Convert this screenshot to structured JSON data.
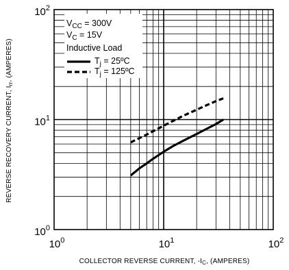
{
  "chart_data": {
    "type": "line",
    "xlabel": {
      "main": "COLLECTOR REVERSE CURRENT, -I",
      "sub": "C",
      "tail": ", (AMPERES)"
    },
    "ylabel": {
      "main": "REVERSE RECOVERY CURRENT, I",
      "sub": "rr",
      "tail": ", (AMPERES)"
    },
    "x_scale": "log",
    "y_scale": "log",
    "xlim": [
      1,
      100
    ],
    "ylim": [
      1,
      100
    ],
    "grid": true,
    "x_ticks": [
      {
        "value": 1,
        "base": "10",
        "exp": "0"
      },
      {
        "value": 10,
        "base": "10",
        "exp": "1"
      },
      {
        "value": 100,
        "base": "10",
        "exp": "2"
      }
    ],
    "y_ticks": [
      {
        "value": 1,
        "base": "10",
        "exp": "0"
      },
      {
        "value": 10,
        "base": "10",
        "exp": "1"
      },
      {
        "value": 100,
        "base": "10",
        "exp": "2"
      }
    ],
    "conditions": [
      {
        "main": "V",
        "sub": "CC",
        "tail": " = 300V"
      },
      {
        "main": "V",
        "sub": "C",
        "tail": " = 15V"
      },
      {
        "main": "Inductive Load",
        "sub": "",
        "tail": ""
      }
    ],
    "series": [
      {
        "name": {
          "main": "T",
          "sub": "j",
          "tail": " = 25ºC"
        },
        "style": "solid",
        "x": [
          5,
          6,
          7,
          8,
          10,
          12,
          15,
          20,
          25,
          30,
          35
        ],
        "y": [
          3.1,
          3.6,
          4.0,
          4.4,
          5.1,
          5.7,
          6.4,
          7.4,
          8.3,
          9.1,
          10.0
        ]
      },
      {
        "name": {
          "main": "T",
          "sub": "j",
          "tail": " = 125ºC"
        },
        "style": "dashed",
        "x": [
          5,
          7,
          10,
          15,
          20,
          25,
          30,
          35
        ],
        "y": [
          6.2,
          7.3,
          8.8,
          10.8,
          12.3,
          13.6,
          14.7,
          15.6
        ]
      }
    ],
    "legend_position": "top-left",
    "line_color": "#000000"
  }
}
